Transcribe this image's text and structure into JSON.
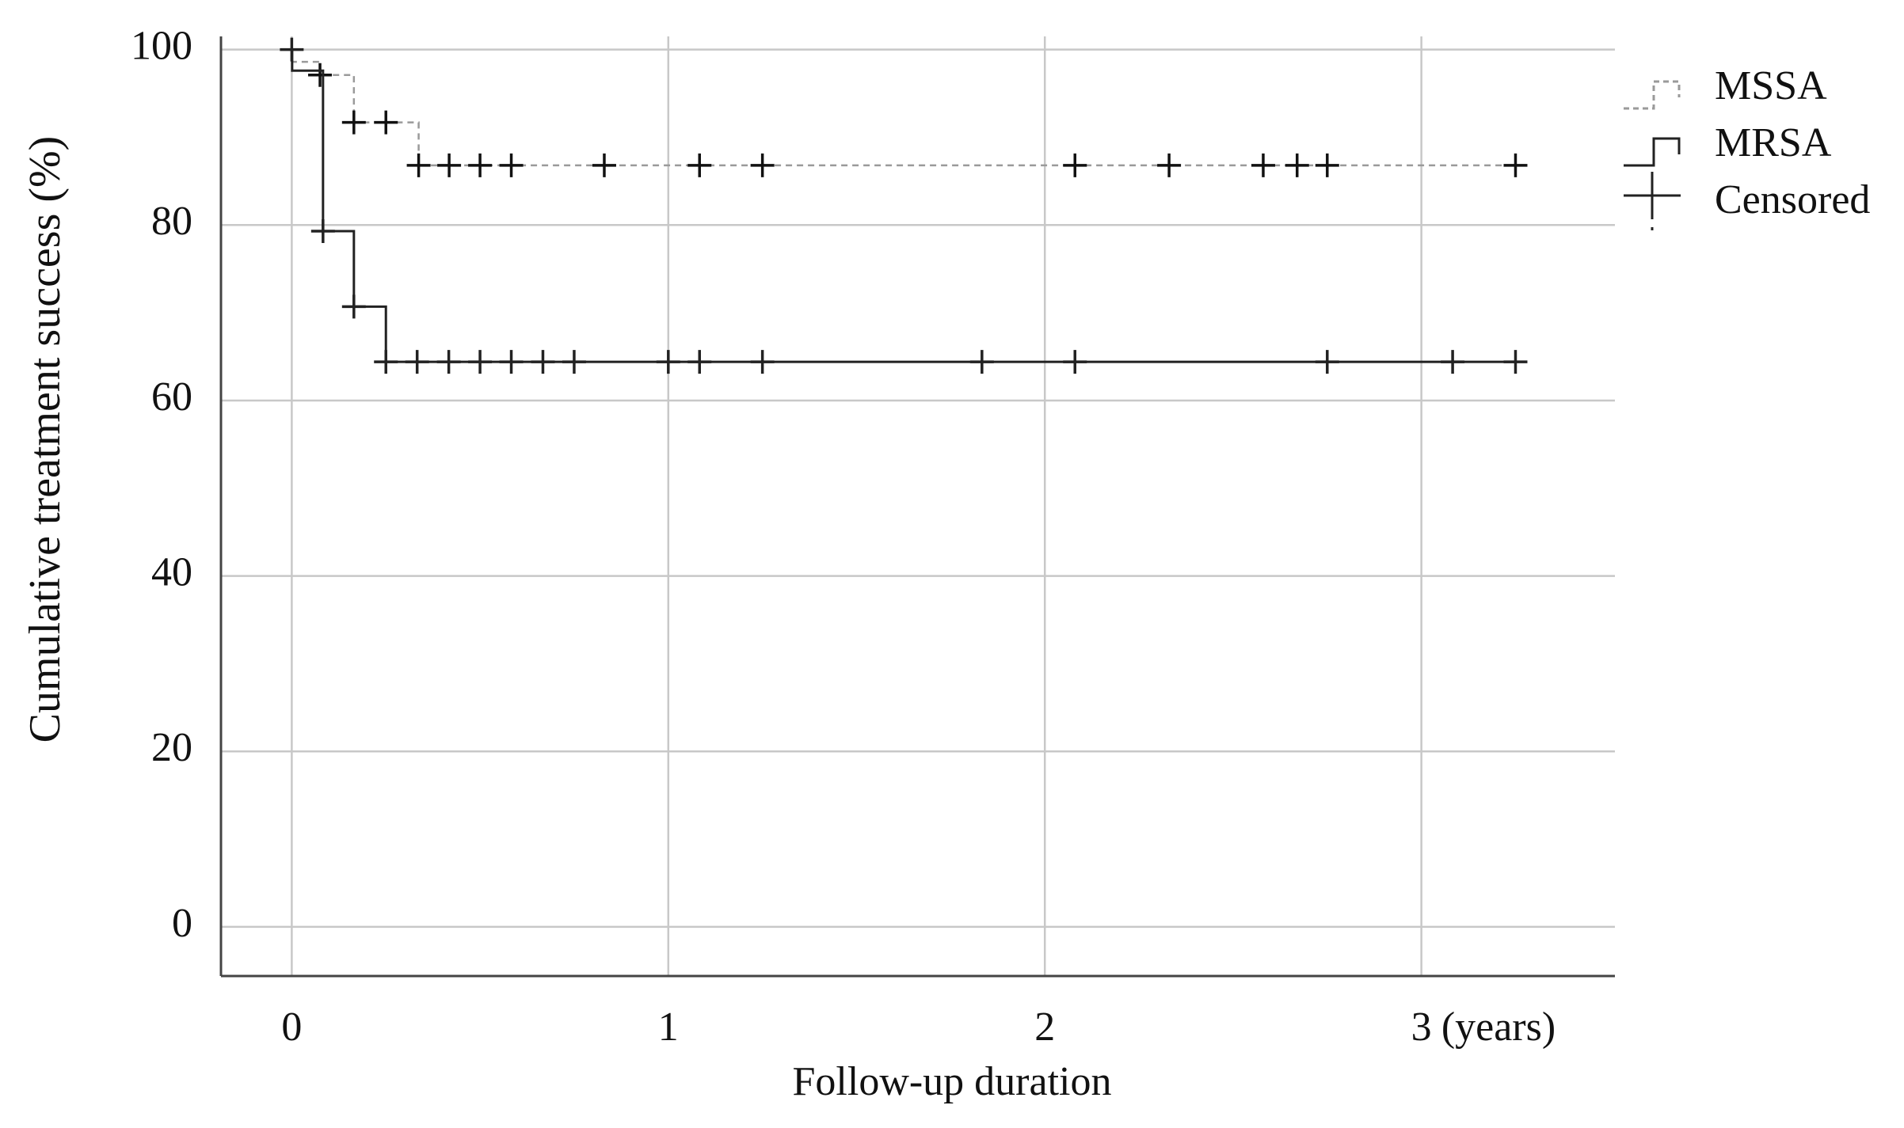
{
  "chart_data": {
    "type": "kaplan-meier",
    "y_label": "Cumulative treatment success (%)",
    "x_label": "Follow-up duration",
    "x_unit": "(years)",
    "censored_label": "Censored",
    "xlim": [
      -0.188,
      3.514
    ],
    "ylim": [
      -5.6,
      101.5
    ],
    "xticks": [
      0,
      1,
      2,
      3
    ],
    "yticks": [
      0,
      20,
      40,
      60,
      80,
      100
    ],
    "grid": true,
    "legend": "right",
    "series": [
      {
        "name": "MSSA",
        "color": "#9a9a9a",
        "dashed": true,
        "x": [
          0,
          0.001,
          0.075,
          0.165,
          0.337,
          3.25
        ],
        "values": [
          100,
          98.6,
          97.1,
          91.7,
          86.8,
          86.8
        ],
        "censored_x": [
          0.075,
          0.165,
          0.25,
          0.337,
          0.418,
          0.5,
          0.583,
          0.83,
          1.083,
          1.25,
          2.08,
          2.33,
          2.58,
          2.67,
          2.75,
          3.25
        ],
        "censored_values": [
          97.1,
          91.7,
          91.7,
          86.8,
          86.8,
          86.8,
          86.8,
          86.8,
          86.8,
          86.8,
          86.8,
          86.8,
          86.8,
          86.8,
          86.8,
          86.8
        ]
      },
      {
        "name": "MRSA",
        "color": "#222222",
        "dashed": false,
        "x": [
          0,
          0.001,
          0.083,
          0.165,
          0.25,
          3.25
        ],
        "values": [
          100,
          97.6,
          79.3,
          70.7,
          64.4,
          64.4
        ],
        "censored_x": [
          0,
          0.083,
          0.165,
          0.25,
          0.333,
          0.417,
          0.5,
          0.583,
          0.667,
          0.75,
          1.0,
          1.083,
          1.25,
          1.833,
          2.08,
          2.75,
          3.083,
          3.25
        ],
        "censored_values": [
          100,
          79.3,
          70.7,
          64.4,
          64.4,
          64.4,
          64.4,
          64.4,
          64.4,
          64.4,
          64.4,
          64.4,
          64.4,
          64.4,
          64.4,
          64.4,
          64.4,
          64.4
        ]
      }
    ]
  }
}
